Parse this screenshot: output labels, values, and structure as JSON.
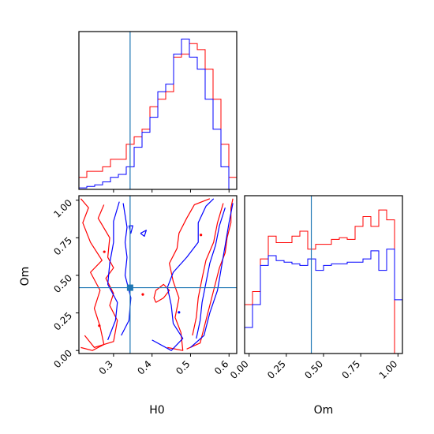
{
  "chart_data": {
    "type": "corner",
    "parameters": [
      "H0",
      "Om"
    ],
    "truth": {
      "H0": 0.343,
      "Om": 0.418
    },
    "series": [
      {
        "color": "#ff0000"
      },
      {
        "color": "#0000ff"
      }
    ],
    "marker_color": "#1f77b4",
    "panels": [
      {
        "id": "H0-hist",
        "type": "histogram",
        "xlim": [
          0.21,
          0.62
        ],
        "x_ticks": [
          0.3,
          0.4,
          0.5,
          0.6
        ],
        "bins": [
          0.21,
          0.2305,
          0.251,
          0.2715,
          0.292,
          0.3125,
          0.333,
          0.3535,
          0.374,
          0.3945,
          0.415,
          0.4355,
          0.456,
          0.4765,
          0.497,
          0.5175,
          0.538,
          0.5585,
          0.579,
          0.5995,
          0.62
        ],
        "red_counts": [
          8,
          12,
          12,
          15,
          20,
          20,
          30,
          35,
          40,
          55,
          60,
          65,
          88,
          90,
          97,
          93,
          80,
          60,
          30,
          8
        ],
        "blue_counts": [
          1,
          2,
          3,
          5,
          8,
          10,
          15,
          28,
          38,
          48,
          65,
          70,
          90,
          100,
          88,
          80,
          60,
          40,
          15,
          0
        ]
      },
      {
        "id": "Om-hist",
        "type": "histogram",
        "xlim": [
          -0.03,
          1.03
        ],
        "x_ticks": [
          0.0,
          0.25,
          0.5,
          0.75,
          1.0
        ],
        "x_tick_labels": [
          "0.00",
          "0.25",
          "0.50",
          "0.75",
          "1.00"
        ],
        "bins": [
          -0.03,
          0.023,
          0.076,
          0.129,
          0.182,
          0.235,
          0.288,
          0.341,
          0.394,
          0.447,
          0.5,
          0.553,
          0.606,
          0.659,
          0.712,
          0.765,
          0.818,
          0.871,
          0.924,
          0.977,
          1.03
        ],
        "red_counts": [
          30,
          38,
          58,
          72,
          68,
          68,
          72,
          75,
          64,
          67,
          67,
          70,
          71,
          70,
          78,
          84,
          78,
          88,
          82,
          0
        ],
        "blue_counts": [
          16,
          30,
          54,
          60,
          57,
          56,
          55,
          54,
          58,
          51,
          54,
          55,
          55,
          56,
          56,
          58,
          63,
          51,
          64,
          33
        ]
      },
      {
        "id": "H0-Om-2d",
        "type": "contour",
        "xlim": [
          0.21,
          0.62
        ],
        "ylim": [
          -0.02,
          1.03
        ],
        "x_ticks": [
          0.3,
          0.4,
          0.5,
          0.6
        ],
        "y_ticks": [
          0.0,
          0.25,
          0.5,
          0.75,
          1.0
        ],
        "y_tick_labels": [
          "0.00",
          "0.25",
          "0.50",
          "0.75",
          "1.00"
        ],
        "red_contours": [
          [
            [
              0.215,
              0.02
            ],
            [
              0.245,
              0.0
            ],
            [
              0.275,
              0.04
            ],
            [
              0.265,
              0.16
            ],
            [
              0.25,
              0.28
            ],
            [
              0.265,
              0.4
            ],
            [
              0.24,
              0.52
            ],
            [
              0.27,
              0.6
            ],
            [
              0.24,
              0.72
            ],
            [
              0.22,
              0.85
            ],
            [
              0.235,
              0.95
            ],
            [
              0.215,
              1.01
            ]
          ],
          [
            [
              0.225,
              0.1
            ],
            [
              0.25,
              0.02
            ],
            [
              0.3,
              0.06
            ],
            [
              0.31,
              0.2
            ],
            [
              0.29,
              0.3
            ],
            [
              0.3,
              0.38
            ],
            [
              0.28,
              0.48
            ],
            [
              0.3,
              0.55
            ],
            [
              0.285,
              0.62
            ],
            [
              0.29,
              0.75
            ],
            [
              0.26,
              0.88
            ],
            [
              0.275,
              0.97
            ]
          ],
          [
            [
              0.44,
              0.02
            ],
            [
              0.48,
              0.0
            ],
            [
              0.475,
              0.12
            ],
            [
              0.46,
              0.22
            ],
            [
              0.47,
              0.35
            ],
            [
              0.455,
              0.46
            ],
            [
              0.445,
              0.58
            ],
            [
              0.465,
              0.68
            ],
            [
              0.47,
              0.78
            ],
            [
              0.49,
              0.88
            ],
            [
              0.51,
              0.97
            ],
            [
              0.55,
              1.01
            ]
          ],
          [
            [
              0.49,
              0.01
            ],
            [
              0.525,
              0.05
            ],
            [
              0.535,
              0.15
            ],
            [
              0.545,
              0.25
            ],
            [
              0.555,
              0.35
            ],
            [
              0.565,
              0.45
            ],
            [
              0.575,
              0.55
            ],
            [
              0.59,
              0.65
            ],
            [
              0.595,
              0.75
            ],
            [
              0.605,
              0.85
            ],
            [
              0.605,
              0.95
            ],
            [
              0.61,
              1.01
            ]
          ],
          [
            [
              0.505,
              0.1
            ],
            [
              0.515,
              0.22
            ],
            [
              0.52,
              0.35
            ],
            [
              0.53,
              0.48
            ],
            [
              0.54,
              0.6
            ],
            [
              0.56,
              0.72
            ],
            [
              0.57,
              0.85
            ],
            [
              0.585,
              0.98
            ]
          ],
          [
            [
              0.41,
              0.32
            ],
            [
              0.43,
              0.35
            ],
            [
              0.445,
              0.4
            ],
            [
              0.43,
              0.44
            ],
            [
              0.41,
              0.4
            ],
            [
              0.405,
              0.35
            ],
            [
              0.41,
              0.32
            ]
          ]
        ],
        "blue_contours": [
          [
            [
              0.285,
              0.07
            ],
            [
              0.305,
              0.2
            ],
            [
              0.31,
              0.32
            ],
            [
              0.285,
              0.44
            ],
            [
              0.29,
              0.58
            ],
            [
              0.3,
              0.72
            ],
            [
              0.3,
              0.86
            ],
            [
              0.315,
              0.99
            ]
          ],
          [
            [
              0.32,
              0.1
            ],
            [
              0.34,
              0.2
            ],
            [
              0.345,
              0.35
            ],
            [
              0.33,
              0.5
            ],
            [
              0.335,
              0.62
            ],
            [
              0.33,
              0.72
            ],
            [
              0.335,
              0.82
            ],
            [
              0.325,
              0.98
            ]
          ],
          [
            [
              0.4,
              0.07
            ],
            [
              0.45,
              0.0
            ],
            [
              0.48,
              0.08
            ],
            [
              0.455,
              0.18
            ],
            [
              0.45,
              0.3
            ],
            [
              0.44,
              0.42
            ],
            [
              0.455,
              0.52
            ],
            [
              0.49,
              0.62
            ],
            [
              0.52,
              0.72
            ],
            [
              0.52,
              0.85
            ],
            [
              0.54,
              0.96
            ],
            [
              0.56,
              1.01
            ]
          ],
          [
            [
              0.5,
              0.02
            ],
            [
              0.535,
              0.1
            ],
            [
              0.55,
              0.25
            ],
            [
              0.57,
              0.4
            ],
            [
              0.58,
              0.55
            ],
            [
              0.59,
              0.7
            ],
            [
              0.6,
              0.85
            ],
            [
              0.61,
              0.98
            ]
          ],
          [
            [
              0.515,
              0.08
            ],
            [
              0.525,
              0.2
            ],
            [
              0.53,
              0.32
            ],
            [
              0.54,
              0.45
            ],
            [
              0.55,
              0.58
            ],
            [
              0.565,
              0.7
            ],
            [
              0.575,
              0.83
            ],
            [
              0.59,
              0.95
            ]
          ],
          [
            [
              0.34,
              0.83
            ],
            [
              0.345,
              0.78
            ],
            [
              0.35,
              0.83
            ],
            [
              0.34,
              0.83
            ]
          ],
          [
            [
              0.37,
              0.78
            ],
            [
              0.385,
              0.8
            ],
            [
              0.38,
              0.76
            ],
            [
              0.37,
              0.78
            ]
          ]
        ],
        "red_points": [
          [
            0.276,
            0.657
          ],
          [
            0.376,
            0.373
          ],
          [
            0.263,
            0.165
          ],
          [
            0.527,
            0.769
          ]
        ],
        "blue_points": [
          [
            0.47,
            0.254
          ]
        ]
      }
    ],
    "xlabels": [
      "H0",
      "Om"
    ],
    "ylabel": "Om"
  }
}
